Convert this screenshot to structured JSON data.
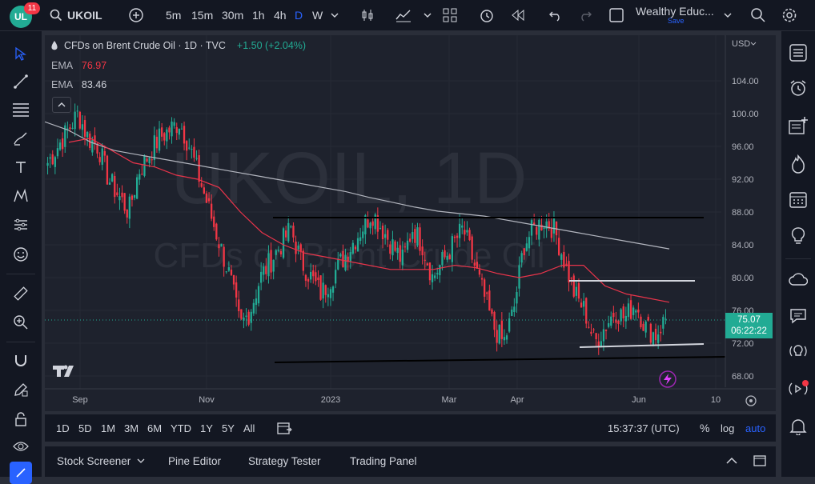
{
  "topbar": {
    "logo_text": "UL",
    "notifications": "11",
    "symbol": "UKOIL",
    "intervals": [
      "5m",
      "15m",
      "30m",
      "1h",
      "4h",
      "D",
      "W"
    ],
    "active_interval": "D",
    "layout_name": "Wealthy Educ...",
    "save_label": "Save"
  },
  "legend": {
    "title": "CFDs on Brent Crude Oil · 1D · TVC",
    "change": "+1.50 (+2.04%)",
    "ema1_label": "EMA",
    "ema1_value": "76.97",
    "ema2_label": "EMA",
    "ema2_value": "83.46",
    "collapse_glyph": "^"
  },
  "watermark": {
    "symbol": "UKOIL, 1D",
    "desc": "CFDs on Brent Crude Oil"
  },
  "price_axis": {
    "currency": "USD",
    "ticks": [
      "104.00",
      "100.00",
      "96.00",
      "92.00",
      "88.00",
      "84.00",
      "80.00",
      "76.00",
      "72.00",
      "68.00"
    ]
  },
  "time_axis": {
    "ticks": [
      "Sep",
      "Nov",
      "2023",
      "Mar",
      "Apr",
      "Jun",
      "10"
    ]
  },
  "last_price": {
    "value": "75.07",
    "countdown": "06:22:22"
  },
  "bottom_toolbar": {
    "ranges": [
      "1D",
      "5D",
      "1M",
      "3M",
      "6M",
      "YTD",
      "1Y",
      "5Y",
      "All"
    ],
    "clock": "15:37:37 (UTC)",
    "percent": "%",
    "log": "log",
    "auto": "auto"
  },
  "panel_tabs": [
    "Stock Screener",
    "Pine Editor",
    "Strategy Tester",
    "Trading Panel"
  ],
  "colors": {
    "up": "#22ab94",
    "down": "#f23645",
    "ema_fast": "#e8344a",
    "ema_slow": "#b2b5be",
    "accent": "#2962ff"
  },
  "chart_data": {
    "type": "candlestick",
    "series": [
      {
        "name": "EMA",
        "color": "#e8344a",
        "values": [
          96.5,
          97.0,
          95.5,
          94.0,
          93.5,
          92.5,
          92.0,
          91.0,
          88.0,
          85.5,
          84.0,
          83.0,
          82.5,
          82.0,
          81.5,
          81.0,
          81.0,
          81.0,
          81.5,
          81.2,
          80.5,
          80.0,
          80.5,
          81.5,
          81.5,
          79.0,
          78.0,
          77.5,
          77.0
        ]
      },
      {
        "name": "EMA",
        "color": "#b2b5be",
        "values": [
          99.0,
          98.0,
          96.5,
          95.5,
          95.0,
          94.5,
          94.0,
          93.5,
          93.0,
          92.5,
          92.0,
          91.5,
          91.0,
          90.5,
          89.8,
          89.2,
          88.6,
          88.1,
          87.8,
          87.5,
          87.0,
          86.5,
          86.0,
          85.5,
          85.0,
          84.5,
          84.0,
          83.5
        ]
      }
    ],
    "closes": [
      94,
      96,
      98,
      100,
      97,
      96,
      92,
      90,
      88,
      93,
      95,
      97,
      98,
      99,
      96,
      92,
      88,
      84,
      80,
      74,
      76,
      80,
      82,
      84,
      86,
      82,
      80,
      78,
      80,
      82,
      84,
      86,
      88,
      86,
      84,
      82,
      86,
      84,
      80,
      82,
      84,
      86,
      82,
      78,
      74,
      72,
      76,
      84,
      86,
      87,
      86,
      82,
      78,
      76,
      72,
      74,
      76,
      75,
      77,
      74,
      73,
      75
    ]
  }
}
